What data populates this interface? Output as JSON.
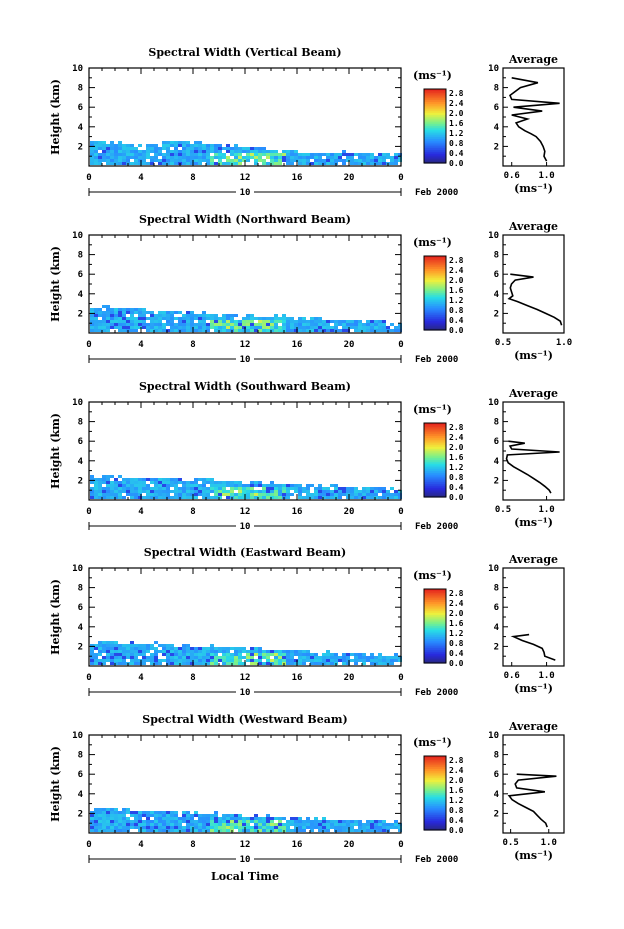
{
  "figure": {
    "xlabel": "Local Time",
    "date_label": "Feb 2000",
    "day_label": "10",
    "ylabel": "Height (km)",
    "colorbar_unit": "(ms⁻¹)",
    "avg_title": "Average",
    "avg_xlabel": "(ms⁻¹)"
  },
  "chart_data": [
    {
      "type": "heatmap",
      "title": "Spectral Width (Vertical Beam)",
      "xlim": [
        0,
        24
      ],
      "ylim": [
        0,
        10
      ],
      "x_ticks": [
        "0",
        "4",
        "8",
        "12",
        "16",
        "20",
        "0"
      ],
      "y_ticks": [
        "2",
        "4",
        "6",
        "8",
        "10"
      ],
      "colorbar_ticks": [
        "2.8",
        "2.4",
        "2.0",
        "1.6",
        "1.2",
        "0.8",
        "0.4",
        "0.0"
      ],
      "colorbar_range": [
        0,
        2.8
      ],
      "data_top_km": [
        2.6,
        2.6,
        2.6,
        2.5,
        2.3,
        2.5,
        2.7,
        2.8,
        2.6,
        2.4,
        2.3,
        2.2,
        2.1,
        1.9,
        1.8,
        1.7,
        1.6,
        1.5,
        1.6,
        1.6,
        1.5,
        1.4,
        1.4,
        1.3,
        1.3
      ],
      "average": {
        "xlim": [
          0.5,
          1.2
        ],
        "x_ticks": [
          "0.6",
          "1.0"
        ],
        "height_km": [
          0.5,
          1.0,
          1.5,
          2.0,
          2.5,
          3.0,
          3.3,
          3.6,
          4.0,
          4.4,
          4.8,
          5.2,
          5.6,
          6.0,
          6.4,
          6.8,
          7.2,
          8.0,
          8.5,
          9.0
        ],
        "width": [
          1.0,
          0.97,
          0.98,
          0.96,
          0.93,
          0.88,
          0.82,
          0.75,
          0.68,
          0.65,
          0.78,
          0.6,
          0.95,
          0.62,
          1.15,
          0.6,
          0.58,
          0.7,
          0.9,
          0.6
        ]
      }
    },
    {
      "type": "heatmap",
      "title": "Spectral Width (Northward Beam)",
      "xlim": [
        0,
        24
      ],
      "ylim": [
        0,
        10
      ],
      "x_ticks": [
        "0",
        "4",
        "8",
        "12",
        "16",
        "20",
        "0"
      ],
      "y_ticks": [
        "2",
        "4",
        "6",
        "8",
        "10"
      ],
      "colorbar_ticks": [
        "2.8",
        "2.4",
        "2.0",
        "1.6",
        "1.2",
        "0.8",
        "0.4",
        "0.0"
      ],
      "colorbar_range": [
        0,
        2.8
      ],
      "data_top_km": [
        2.7,
        2.8,
        2.7,
        2.6,
        2.5,
        2.5,
        2.4,
        2.3,
        2.2,
        2.2,
        2.1,
        2.0,
        2.0,
        1.9,
        1.8,
        1.8,
        1.7,
        1.6,
        1.6,
        1.5,
        1.5,
        1.4,
        1.4,
        1.3,
        1.3
      ],
      "average": {
        "xlim": [
          0.5,
          1.0
        ],
        "x_ticks": [
          "0.5",
          "1.0"
        ],
        "height_km": [
          0.8,
          1.2,
          1.6,
          2.0,
          2.4,
          2.8,
          3.2,
          3.5,
          3.8,
          4.2,
          4.6,
          5.0,
          5.4,
          5.7,
          6.0
        ],
        "width": [
          0.98,
          0.97,
          0.92,
          0.85,
          0.78,
          0.7,
          0.62,
          0.55,
          0.58,
          0.57,
          0.56,
          0.57,
          0.6,
          0.75,
          0.56
        ]
      }
    },
    {
      "type": "heatmap",
      "title": "Spectral Width (Southward Beam)",
      "xlim": [
        0,
        24
      ],
      "ylim": [
        0,
        10
      ],
      "x_ticks": [
        "0",
        "4",
        "8",
        "12",
        "16",
        "20",
        "0"
      ],
      "y_ticks": [
        "2",
        "4",
        "6",
        "8",
        "10"
      ],
      "colorbar_ticks": [
        "2.8",
        "2.4",
        "2.0",
        "1.6",
        "1.2",
        "0.8",
        "0.4",
        "0.0"
      ],
      "colorbar_range": [
        0,
        2.8
      ],
      "data_top_km": [
        2.6,
        2.6,
        2.6,
        2.5,
        2.5,
        2.4,
        2.4,
        2.3,
        2.3,
        2.2,
        2.2,
        2.1,
        2.0,
        2.0,
        1.9,
        1.8,
        1.7,
        1.7,
        1.6,
        1.6,
        1.5,
        1.5,
        1.4,
        1.4,
        1.3
      ],
      "average": {
        "xlim": [
          0.5,
          1.2
        ],
        "x_ticks": [
          "0.5",
          "1.0"
        ],
        "height_km": [
          0.7,
          1.0,
          1.4,
          1.8,
          2.2,
          2.6,
          3.0,
          3.4,
          3.8,
          4.2,
          4.6,
          4.9,
          5.2,
          5.5,
          5.8,
          6.0
        ],
        "width": [
          1.05,
          1.03,
          0.98,
          0.92,
          0.85,
          0.78,
          0.7,
          0.62,
          0.56,
          0.54,
          0.55,
          1.15,
          0.6,
          0.58,
          0.75,
          0.56
        ]
      }
    },
    {
      "type": "heatmap",
      "title": "Spectral Width (Eastward Beam)",
      "xlim": [
        0,
        24
      ],
      "ylim": [
        0,
        10
      ],
      "x_ticks": [
        "0",
        "4",
        "8",
        "12",
        "16",
        "20",
        "0"
      ],
      "y_ticks": [
        "2",
        "4",
        "6",
        "8",
        "10"
      ],
      "colorbar_ticks": [
        "2.8",
        "2.4",
        "2.0",
        "1.6",
        "1.2",
        "0.8",
        "0.4",
        "0.0"
      ],
      "colorbar_range": [
        0,
        2.8
      ],
      "data_top_km": [
        2.6,
        2.7,
        2.6,
        2.5,
        2.4,
        2.5,
        2.4,
        2.3,
        2.2,
        2.2,
        2.1,
        2.0,
        2.0,
        1.9,
        1.8,
        1.8,
        1.7,
        1.6,
        1.6,
        1.5,
        1.5,
        1.4,
        1.4,
        1.3,
        1.3
      ],
      "average": {
        "xlim": [
          0.5,
          1.2
        ],
        "x_ticks": [
          "0.6",
          "1.0"
        ],
        "height_km": [
          0.6,
          1.0,
          1.4,
          1.8,
          2.2,
          2.6,
          3.0,
          3.2
        ],
        "width": [
          1.1,
          0.98,
          0.97,
          0.95,
          0.85,
          0.72,
          0.62,
          0.8
        ]
      }
    },
    {
      "type": "heatmap",
      "title": "Spectral Width (Westward Beam)",
      "xlim": [
        0,
        24
      ],
      "ylim": [
        0,
        10
      ],
      "x_ticks": [
        "0",
        "4",
        "8",
        "12",
        "16",
        "20",
        "0"
      ],
      "y_ticks": [
        "2",
        "4",
        "6",
        "8",
        "10"
      ],
      "colorbar_ticks": [
        "2.8",
        "2.4",
        "2.0",
        "1.6",
        "1.2",
        "0.8",
        "0.4",
        "0.0"
      ],
      "colorbar_range": [
        0,
        2.8
      ],
      "data_top_km": [
        2.6,
        2.7,
        2.6,
        2.5,
        2.4,
        2.4,
        2.4,
        2.3,
        2.2,
        2.2,
        2.1,
        2.0,
        2.0,
        1.9,
        1.8,
        1.8,
        1.7,
        1.6,
        1.6,
        1.5,
        1.5,
        1.4,
        1.4,
        1.3,
        1.3
      ],
      "average": {
        "xlim": [
          0.4,
          1.2
        ],
        "x_ticks": [
          "0.5",
          "1.0"
        ],
        "height_km": [
          0.6,
          1.0,
          1.4,
          1.8,
          2.2,
          2.6,
          3.0,
          3.4,
          3.8,
          4.2,
          4.6,
          5.0,
          5.4,
          5.8,
          6.0
        ],
        "width": [
          0.98,
          0.96,
          0.9,
          0.85,
          0.8,
          0.7,
          0.6,
          0.52,
          0.48,
          0.95,
          0.58,
          0.56,
          0.6,
          1.1,
          0.58
        ]
      }
    }
  ]
}
